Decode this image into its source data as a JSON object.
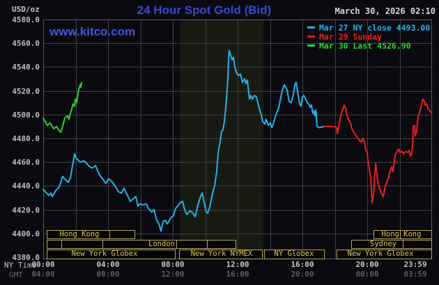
{
  "header": {
    "title": "24 Hour Spot Gold (Bid)",
    "datetime": "March 30, 2026 02:10",
    "units_label": "USD/oz",
    "watermark": "www.kitco.com"
  },
  "legend": [
    {
      "label": "Mar 27 NY close 4493.00",
      "color": "#1db4f2"
    },
    {
      "label": "Mar 29 Sunday",
      "color": "#f21b1b"
    },
    {
      "label": "Mar 30 Last 4526.90",
      "color": "#2bd32b"
    }
  ],
  "colors": {
    "background": "#0a0a10",
    "band": "#171a11",
    "grid": "#3f3f46",
    "border": "#57575c",
    "title": "#3947d1",
    "watermark": "#4458dd",
    "session_border": "#b2a558",
    "session_text": "#e0c550",
    "session_fill": "#060609"
  },
  "axes": {
    "ny_time_label": "NY Time",
    "gmt_label": "GMT",
    "y_ticks": [
      "4580.0",
      "4560.0",
      "4540.0",
      "4520.0",
      "4500.0",
      "4480.0",
      "4460.0",
      "4440.0",
      "4420.0",
      "4400.0",
      "4380.0"
    ],
    "x_ticks": [
      {
        "ny": "00:00",
        "gmt": "04:00",
        "t": 0
      },
      {
        "ny": "04:00",
        "gmt": "08:00",
        "t": 4
      },
      {
        "ny": "08:00",
        "gmt": "12:00",
        "t": 8
      },
      {
        "ny": "12:00",
        "gmt": "16:00",
        "t": 12
      },
      {
        "ny": "16:00",
        "gmt": "20:00",
        "t": 16
      },
      {
        "ny": "20:00",
        "gmt": "00:00",
        "t": 20
      },
      {
        "ny": "23:59",
        "gmt": "03:59",
        "t": 24
      }
    ]
  },
  "sessions": {
    "rows": [
      {
        "boxes": [
          [
            0.2,
            4.1
          ],
          [
            4.1,
            5.65
          ],
          [
            20.4,
            22.0
          ],
          [
            22.0,
            23.95
          ]
        ],
        "labels": [
          {
            "text": "Hong Kong",
            "t": 2.25
          },
          {
            "text": "Hong Kong",
            "t": 22.1
          }
        ]
      },
      {
        "boxes": [
          [
            0.2,
            1.1
          ],
          [
            1.1,
            3.65
          ],
          [
            3.65,
            8.2
          ],
          [
            8.2,
            10.1
          ],
          [
            10.1,
            11.85
          ],
          [
            19.0,
            22.2
          ],
          [
            22.2,
            23.95
          ]
        ],
        "labels": [
          {
            "text": "London",
            "t": 7.3
          },
          {
            "text": "Sydney",
            "t": 21.0
          }
        ]
      },
      {
        "boxes": [
          [
            0.2,
            8.15
          ],
          [
            8.4,
            13.5
          ],
          [
            13.65,
            17.35
          ],
          [
            18.1,
            23.95
          ]
        ],
        "labels": [
          {
            "text": "New York Globex",
            "t": 3.8
          },
          {
            "text": "New York NYMEX",
            "t": 11.0
          },
          {
            "text": "NY Globex",
            "t": 15.5
          },
          {
            "text": "New York Globex",
            "t": 20.8
          }
        ]
      }
    ]
  },
  "chart_data": {
    "type": "line",
    "title": "24 Hour Spot Gold (Bid)",
    "xlabel": "NY Time (00:00 - 23:59)",
    "ylabel": "USD/oz",
    "xlim_hours": [
      0,
      24
    ],
    "ylim": [
      4380,
      4580
    ],
    "y_grid_step": 20,
    "x_grid_step_hours": 2,
    "legend_position": "top-right",
    "nymex_band_hours": [
      8.43,
      13.59
    ],
    "series": [
      {
        "id": "mar27-ny-close",
        "name": "Mar 27 NY close 4493.00",
        "color": "#1db4f2",
        "points": [
          [
            0,
            4437
          ],
          [
            0.34,
            4432
          ],
          [
            0.47,
            4434
          ],
          [
            0.56,
            4431
          ],
          [
            0.77,
            4436
          ],
          [
            0.99,
            4439
          ],
          [
            1.2,
            4448
          ],
          [
            1.38,
            4445
          ],
          [
            1.55,
            4443
          ],
          [
            1.68,
            4447
          ],
          [
            1.81,
            4457
          ],
          [
            1.94,
            4467
          ],
          [
            2.06,
            4463
          ],
          [
            2.28,
            4460
          ],
          [
            2.54,
            4461
          ],
          [
            2.8,
            4457
          ],
          [
            3.01,
            4455
          ],
          [
            3.23,
            4457
          ],
          [
            3.44,
            4450
          ],
          [
            3.66,
            4446
          ],
          [
            3.87,
            4442
          ],
          [
            4.04,
            4446
          ],
          [
            4.22,
            4444
          ],
          [
            4.43,
            4440
          ],
          [
            4.65,
            4435
          ],
          [
            4.82,
            4434
          ],
          [
            4.99,
            4438
          ],
          [
            5.16,
            4433
          ],
          [
            5.38,
            4427
          ],
          [
            5.55,
            4429
          ],
          [
            5.72,
            4431
          ],
          [
            5.85,
            4423
          ],
          [
            5.98,
            4425
          ],
          [
            6.15,
            4424
          ],
          [
            6.37,
            4425
          ],
          [
            6.49,
            4421
          ],
          [
            6.71,
            4418
          ],
          [
            6.84,
            4420
          ],
          [
            7.01,
            4411
          ],
          [
            7.14,
            4408
          ],
          [
            7.27,
            4402
          ],
          [
            7.4,
            4410
          ],
          [
            7.53,
            4411
          ],
          [
            7.66,
            4408
          ],
          [
            7.87,
            4413
          ],
          [
            8.04,
            4415
          ],
          [
            8.17,
            4421
          ],
          [
            8.34,
            4424
          ],
          [
            8.47,
            4426
          ],
          [
            8.6,
            4427
          ],
          [
            8.73,
            4420
          ],
          [
            8.86,
            4416
          ],
          [
            9.08,
            4419
          ],
          [
            9.25,
            4417
          ],
          [
            9.38,
            4414
          ],
          [
            9.55,
            4424
          ],
          [
            9.68,
            4430
          ],
          [
            9.81,
            4434
          ],
          [
            9.94,
            4426
          ],
          [
            10.06,
            4418
          ],
          [
            10.15,
            4417
          ],
          [
            10.28,
            4422
          ],
          [
            10.45,
            4434
          ],
          [
            10.58,
            4440
          ],
          [
            10.71,
            4452
          ],
          [
            10.8,
            4468
          ],
          [
            10.92,
            4477
          ],
          [
            11.01,
            4486
          ],
          [
            11.1,
            4487
          ],
          [
            11.18,
            4494
          ],
          [
            11.27,
            4506
          ],
          [
            11.35,
            4520
          ],
          [
            11.4,
            4532
          ],
          [
            11.44,
            4547
          ],
          [
            11.48,
            4554
          ],
          [
            11.57,
            4550
          ],
          [
            11.66,
            4546
          ],
          [
            11.74,
            4548
          ],
          [
            11.83,
            4540
          ],
          [
            11.91,
            4536
          ],
          [
            12.04,
            4533
          ],
          [
            12.17,
            4534
          ],
          [
            12.3,
            4527
          ],
          [
            12.43,
            4530
          ],
          [
            12.52,
            4526
          ],
          [
            12.6,
            4529
          ],
          [
            12.73,
            4513
          ],
          [
            12.82,
            4516
          ],
          [
            12.9,
            4513
          ],
          [
            13.03,
            4516
          ],
          [
            13.16,
            4515
          ],
          [
            13.38,
            4503
          ],
          [
            13.46,
            4500
          ],
          [
            13.55,
            4494
          ],
          [
            13.68,
            4492
          ],
          [
            13.76,
            4496
          ],
          [
            13.89,
            4491
          ],
          [
            14.02,
            4493
          ],
          [
            14.11,
            4489
          ],
          [
            14.24,
            4494
          ],
          [
            14.32,
            4498
          ],
          [
            14.54,
            4506
          ],
          [
            14.75,
            4520
          ],
          [
            14.88,
            4525
          ],
          [
            15.05,
            4521
          ],
          [
            15.18,
            4511
          ],
          [
            15.31,
            4510
          ],
          [
            15.44,
            4517
          ],
          [
            15.53,
            4525
          ],
          [
            15.61,
            4527
          ],
          [
            15.74,
            4516
          ],
          [
            15.83,
            4509
          ],
          [
            15.91,
            4507
          ],
          [
            16.0,
            4515
          ],
          [
            16.09,
            4516
          ],
          [
            16.17,
            4514
          ],
          [
            16.3,
            4510
          ],
          [
            16.43,
            4508
          ],
          [
            16.48,
            4506
          ],
          [
            16.56,
            4508
          ],
          [
            16.64,
            4501
          ],
          [
            16.7,
            4503
          ],
          [
            16.77,
            4499
          ],
          [
            16.82,
            4504
          ],
          [
            16.86,
            4499
          ],
          [
            16.9,
            4490
          ],
          [
            17.05,
            4489
          ],
          [
            17.33,
            4490
          ]
        ]
      },
      {
        "id": "mar29-sunday",
        "name": "Mar 29 Sunday",
        "color": "#f21b1b",
        "points": [
          [
            17.33,
            4490
          ],
          [
            17.98,
            4490
          ],
          [
            18.11,
            4489
          ],
          [
            18.15,
            4484
          ],
          [
            18.24,
            4490
          ],
          [
            18.32,
            4496
          ],
          [
            18.45,
            4503
          ],
          [
            18.58,
            4508
          ],
          [
            18.67,
            4505
          ],
          [
            18.75,
            4500
          ],
          [
            18.84,
            4496
          ],
          [
            18.97,
            4493
          ],
          [
            19.05,
            4488
          ],
          [
            19.27,
            4483
          ],
          [
            19.48,
            4479
          ],
          [
            19.61,
            4477
          ],
          [
            19.74,
            4480
          ],
          [
            19.83,
            4477
          ],
          [
            19.91,
            4470
          ],
          [
            20.0,
            4468
          ],
          [
            20.04,
            4462
          ],
          [
            20.13,
            4454
          ],
          [
            20.22,
            4446
          ],
          [
            20.26,
            4437
          ],
          [
            20.3,
            4426
          ],
          [
            20.39,
            4434
          ],
          [
            20.43,
            4442
          ],
          [
            20.52,
            4459
          ],
          [
            20.6,
            4450
          ],
          [
            20.65,
            4444
          ],
          [
            20.73,
            4439
          ],
          [
            20.86,
            4434
          ],
          [
            20.99,
            4431
          ],
          [
            21.12,
            4440
          ],
          [
            21.29,
            4446
          ],
          [
            21.42,
            4453
          ],
          [
            21.51,
            4456
          ],
          [
            21.59,
            4452
          ],
          [
            21.72,
            4466
          ],
          [
            21.85,
            4469
          ],
          [
            21.94,
            4471
          ],
          [
            22.02,
            4468
          ],
          [
            22.15,
            4469
          ],
          [
            22.24,
            4467
          ],
          [
            22.37,
            4469
          ],
          [
            22.49,
            4468
          ],
          [
            22.58,
            4470
          ],
          [
            22.67,
            4465
          ],
          [
            22.75,
            4467
          ],
          [
            22.8,
            4474
          ],
          [
            22.84,
            4490
          ],
          [
            22.92,
            4491
          ],
          [
            22.97,
            4482
          ],
          [
            23.05,
            4486
          ],
          [
            23.14,
            4498
          ],
          [
            23.23,
            4502
          ],
          [
            23.31,
            4506
          ],
          [
            23.44,
            4513
          ],
          [
            23.53,
            4511
          ],
          [
            23.57,
            4508
          ],
          [
            23.66,
            4509
          ],
          [
            23.74,
            4505
          ],
          [
            23.83,
            4504
          ],
          [
            23.91,
            4502
          ],
          [
            24.0,
            4502
          ]
        ]
      },
      {
        "id": "mar30-last",
        "name": "Mar 30 Last 4526.90",
        "color": "#2bd32b",
        "points": [
          [
            0,
            4497
          ],
          [
            0.26,
            4491
          ],
          [
            0.43,
            4493
          ],
          [
            0.65,
            4488
          ],
          [
            0.82,
            4490
          ],
          [
            0.95,
            4487
          ],
          [
            1.08,
            4485
          ],
          [
            1.2,
            4490
          ],
          [
            1.33,
            4497
          ],
          [
            1.51,
            4499
          ],
          [
            1.59,
            4496
          ],
          [
            1.68,
            4501
          ],
          [
            1.85,
            4509
          ],
          [
            1.94,
            4507
          ],
          [
            1.98,
            4513
          ],
          [
            2.06,
            4510
          ],
          [
            2.19,
            4521
          ],
          [
            2.28,
            4525
          ],
          [
            2.32,
            4523
          ],
          [
            2.37,
            4527
          ]
        ]
      }
    ]
  }
}
